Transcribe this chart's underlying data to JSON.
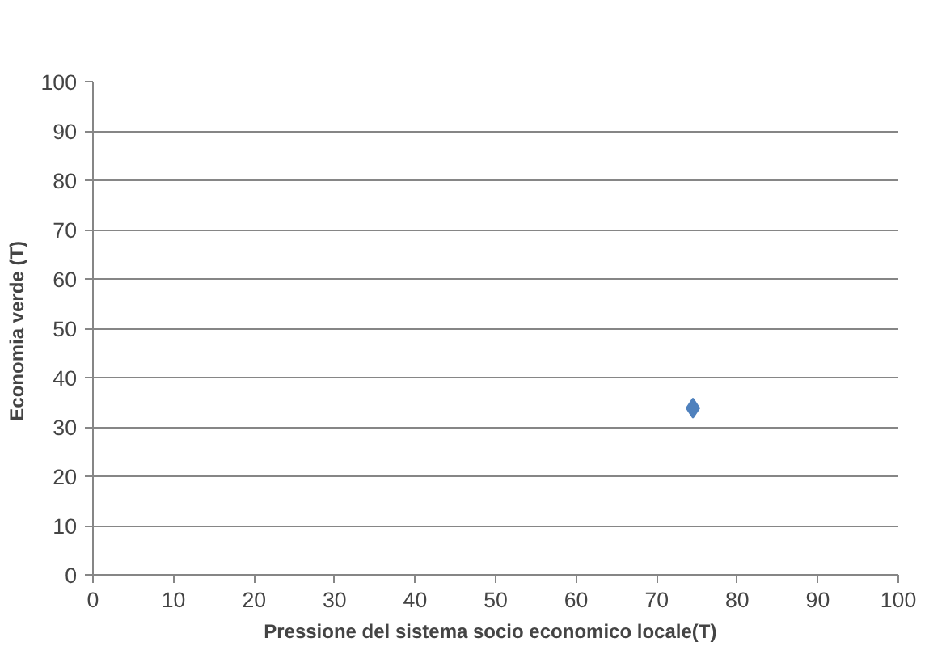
{
  "chart_data": {
    "type": "scatter",
    "xlabel": "Pressione del sistema socio  economico  locale(T)",
    "ylabel": "Economia  verde (T)",
    "x": [
      74.5
    ],
    "series": [
      {
        "color": "#4f81bd",
        "values": [
          33.8
        ]
      }
    ],
    "xlim": [
      0,
      100
    ],
    "xticks": [
      0,
      10,
      20,
      30,
      40,
      50,
      60,
      70,
      80,
      90,
      100
    ],
    "ylim": [
      0,
      100
    ],
    "yticks": [
      0,
      10,
      20,
      30,
      40,
      50,
      60,
      70,
      80,
      90,
      100
    ],
    "grid": "y",
    "marker": "diamond"
  }
}
